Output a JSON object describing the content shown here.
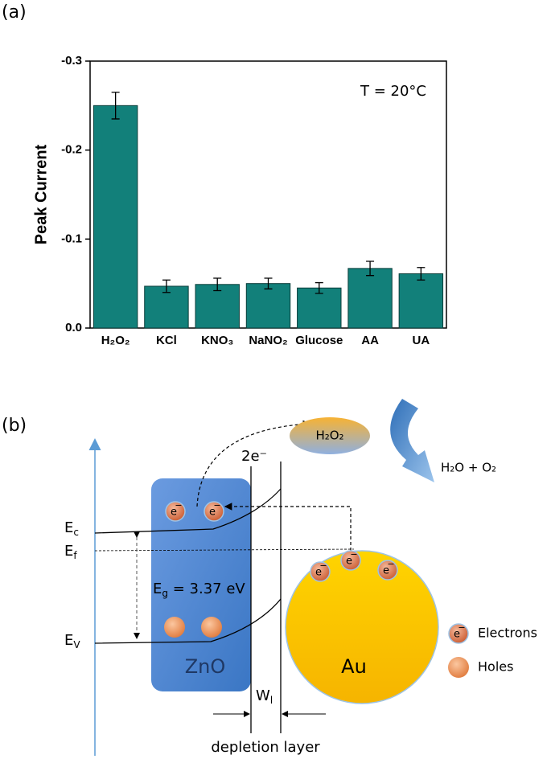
{
  "chart_data": {
    "type": "bar",
    "panel_label": "(a)",
    "ylabel": "Peak Current",
    "annotation": "T = 20°C",
    "categories": [
      "H₂O₂",
      "KCl",
      "KNO₃",
      "NaNO₂",
      "Glucose",
      "AA",
      "UA"
    ],
    "values": [
      -0.25,
      -0.047,
      -0.049,
      -0.05,
      -0.045,
      -0.067,
      -0.061
    ],
    "errors": [
      0.015,
      0.007,
      0.007,
      0.006,
      0.006,
      0.008,
      0.007
    ],
    "color": "#12807a",
    "ylim": [
      0,
      -0.3
    ],
    "yticks": [
      {
        "value": 0,
        "label": "0.0"
      },
      -0.1,
      -0.2,
      -0.3
    ]
  },
  "diagram": {
    "panel_label": "(b)",
    "transfer": "2e⁻",
    "reactant": "H₂O₂",
    "product": "H₂O + O₂",
    "conduction_band": {
      "main": "E",
      "sub": "c"
    },
    "fermi_level": {
      "main": "E",
      "sub": "f"
    },
    "valence_band": {
      "main": "E",
      "sub": "V"
    },
    "band_gap": {
      "main": "E",
      "sub": "g",
      "rest": " = 3.37 eV"
    },
    "semiconductor": "ZnO",
    "metal": "Au",
    "width": {
      "main": "W",
      "sub": "l"
    },
    "region": "depletion layer",
    "electron_icon": {
      "symbol": "e",
      "charge": "−"
    },
    "legend": [
      "Electrons",
      "Holes"
    ]
  }
}
